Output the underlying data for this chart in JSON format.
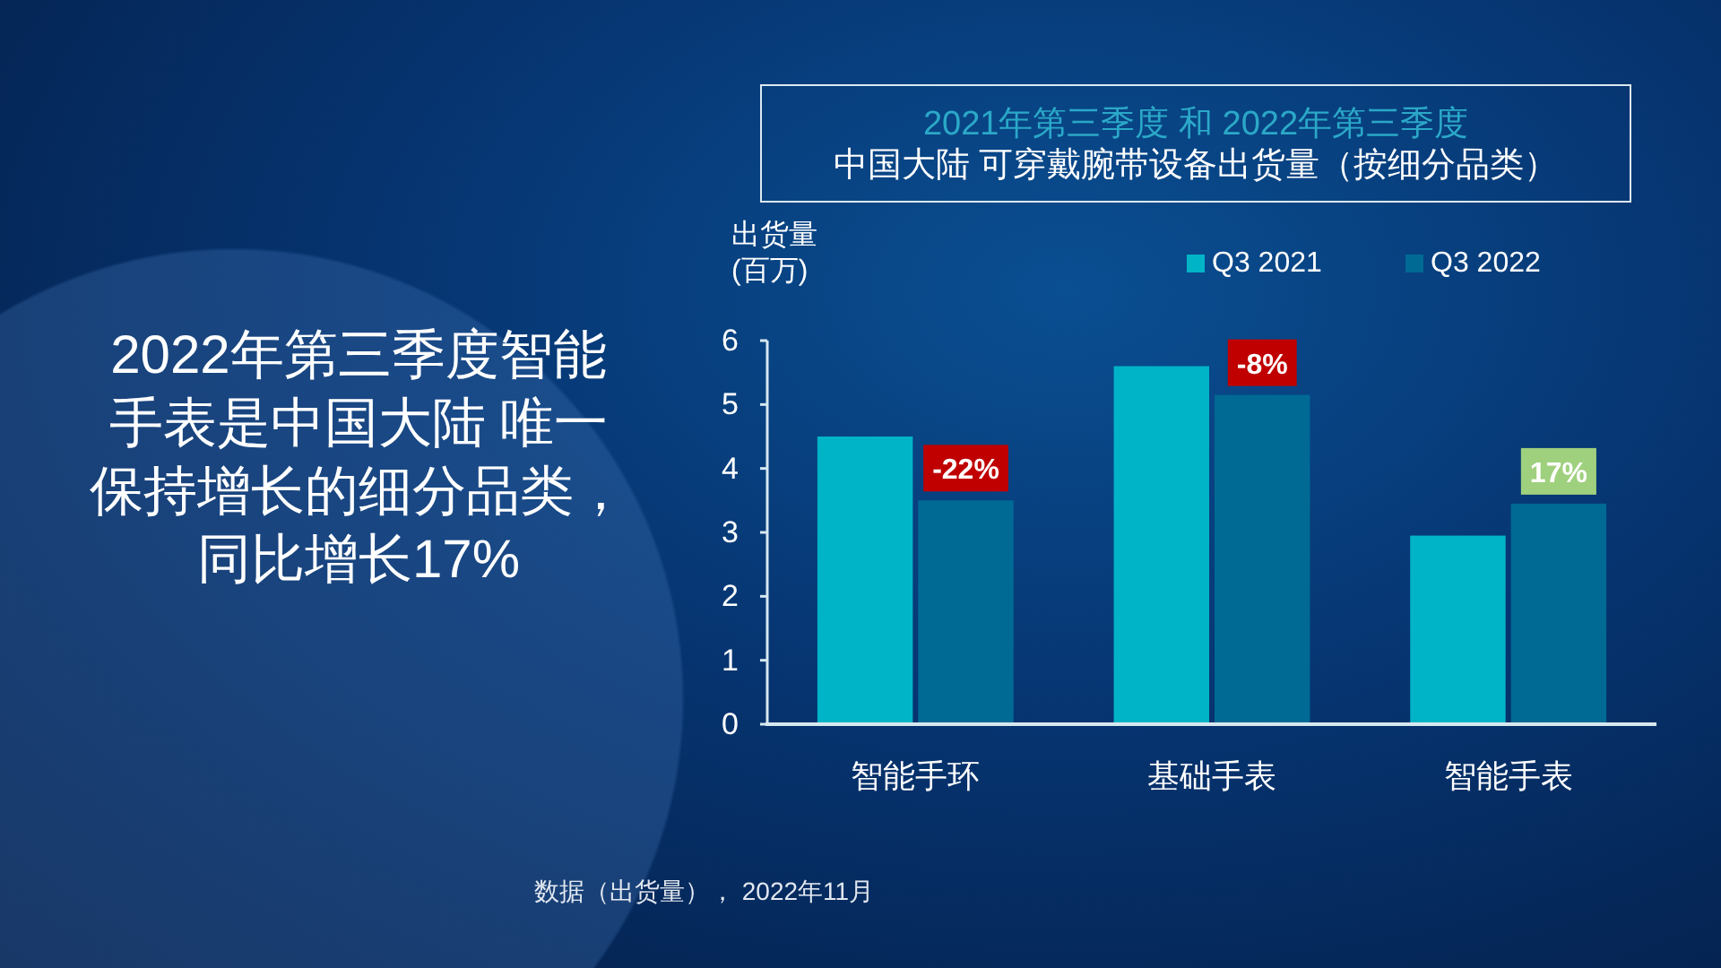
{
  "chart_data": {
    "type": "bar",
    "title": "2021年第三季度 和 2022年第三季度",
    "subtitle": "中国大陆 可穿戴腕带设备出货量（按细分品类）",
    "ylabel": "出货量 (百万)",
    "categories": [
      "智能手环",
      "基础手表",
      "智能手表"
    ],
    "series": [
      {
        "name": "Q3 2021",
        "color": "#00b4c8",
        "values": [
          4.5,
          5.6,
          2.95
        ]
      },
      {
        "name": "Q3 2022",
        "color": "#006a94",
        "values": [
          3.5,
          5.15,
          3.45
        ]
      }
    ],
    "ylim": [
      0,
      6
    ],
    "yticks": [
      0,
      1,
      2,
      3,
      4,
      5,
      6
    ],
    "legend": "top right",
    "annotations": [
      {
        "text": "-22%",
        "x": "智能手环",
        "y": 3.5
      },
      {
        "text": "-8%",
        "x": "基础手表",
        "y": 5.15
      },
      {
        "text": "17%",
        "x": "智能手表",
        "y": 3.45
      },
      "2022年第三季度智能手表是中国大陆 唯一保持增长的细分品类，同比增长17%",
      "数据（出货量）， 2022年11月"
    ]
  }
}
